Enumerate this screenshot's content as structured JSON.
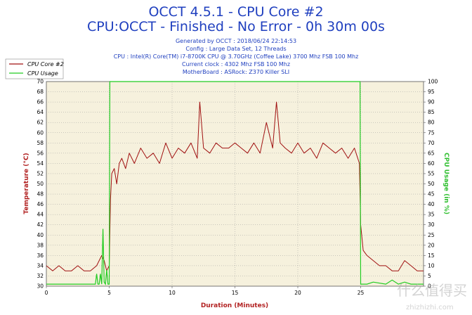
{
  "header": {
    "title": "OCCT 4.5.1 - CPU Core #2",
    "subtitle": "CPU:OCCT - Finished - No Error - 0h 30m 00s",
    "info_lines": [
      "Generated by OCCT : 2018/06/24 22:14:53",
      "Config : Large Data Set, 12 Threads",
      "CPU : Intel(R) Core(TM) i7-8700K CPU @ 3.70GHz (Coffee Lake) 3700 Mhz FSB 100 Mhz",
      "Current clock : 4302 Mhz FSB 100 Mhz",
      "MotherBoard : ASRock: Z370 Killer SLI"
    ]
  },
  "watermark": {
    "main": "什么值得买",
    "sub": "zhizhizhi.com"
  },
  "colors": {
    "temperature": "#a01010",
    "usage": "#22cc22",
    "plot_bg": "#f6f1dd",
    "grid": "#9a9a9a",
    "title": "#1f3fbf"
  },
  "chart_data": {
    "type": "line",
    "xlabel": "Duration (Minutes)",
    "ylabel": "Temperature (°C)",
    "y2label": "CPU Usage (in %)",
    "xlim": [
      0,
      30
    ],
    "ylim": [
      30,
      70
    ],
    "y2lim": [
      0,
      100
    ],
    "xticks": [
      0,
      5,
      10,
      15,
      20,
      25
    ],
    "yticks": [
      30,
      32,
      34,
      36,
      38,
      40,
      42,
      44,
      46,
      48,
      50,
      52,
      54,
      56,
      58,
      60,
      62,
      64,
      66,
      68,
      70
    ],
    "y2ticks": [
      0,
      5,
      10,
      15,
      20,
      25,
      30,
      35,
      40,
      45,
      50,
      55,
      60,
      65,
      70,
      75,
      80,
      85,
      90,
      95,
      100
    ],
    "grid": true,
    "legend_position": "top-left",
    "series": [
      {
        "name": "CPU Core #2",
        "axis": "left",
        "x": [
          0,
          0.5,
          1,
          1.5,
          2,
          2.5,
          3,
          3.5,
          4,
          4.4,
          4.6,
          4.8,
          5.0,
          5.1,
          5.2,
          5.4,
          5.6,
          5.8,
          6.0,
          6.3,
          6.6,
          7.0,
          7.5,
          8.0,
          8.5,
          9.0,
          9.5,
          10.0,
          10.5,
          11.0,
          11.5,
          12.0,
          12.2,
          12.5,
          13.0,
          13.5,
          14.0,
          14.5,
          15.0,
          15.5,
          16.0,
          16.5,
          17.0,
          17.5,
          18.0,
          18.3,
          18.6,
          19.0,
          19.5,
          20.0,
          20.5,
          21.0,
          21.5,
          22.0,
          22.5,
          23.0,
          23.5,
          24.0,
          24.5,
          24.9,
          25.0,
          25.2,
          25.5,
          26.0,
          26.5,
          27.0,
          27.5,
          28.0,
          28.5,
          29.0,
          29.5,
          30.0
        ],
        "values": [
          34,
          33,
          34,
          33,
          33,
          34,
          33,
          33,
          34,
          36,
          35,
          33,
          34,
          47,
          52,
          53,
          50,
          54,
          55,
          53,
          56,
          54,
          57,
          55,
          56,
          54,
          58,
          55,
          57,
          56,
          58,
          55,
          66,
          57,
          56,
          58,
          57,
          57,
          58,
          57,
          56,
          58,
          56,
          62,
          57,
          66,
          58,
          57,
          56,
          58,
          56,
          57,
          55,
          58,
          57,
          56,
          57,
          55,
          57,
          54,
          42,
          37,
          36,
          35,
          34,
          34,
          33,
          33,
          35,
          34,
          33,
          33
        ]
      },
      {
        "name": "CPU Usage",
        "axis": "right",
        "x": [
          0,
          1,
          2,
          3,
          3.9,
          4.0,
          4.1,
          4.2,
          4.3,
          4.4,
          4.5,
          4.6,
          4.7,
          4.8,
          4.9,
          5.0,
          5.05,
          24.95,
          25.0,
          25.5,
          26,
          27,
          27.5,
          28,
          28.5,
          29,
          30
        ],
        "values": [
          1,
          1,
          1,
          1,
          1,
          6,
          1,
          1,
          6,
          1,
          28,
          2,
          1,
          8,
          1,
          1,
          100,
          100,
          1,
          1,
          2,
          1,
          3,
          1,
          2,
          1,
          1
        ]
      }
    ]
  }
}
